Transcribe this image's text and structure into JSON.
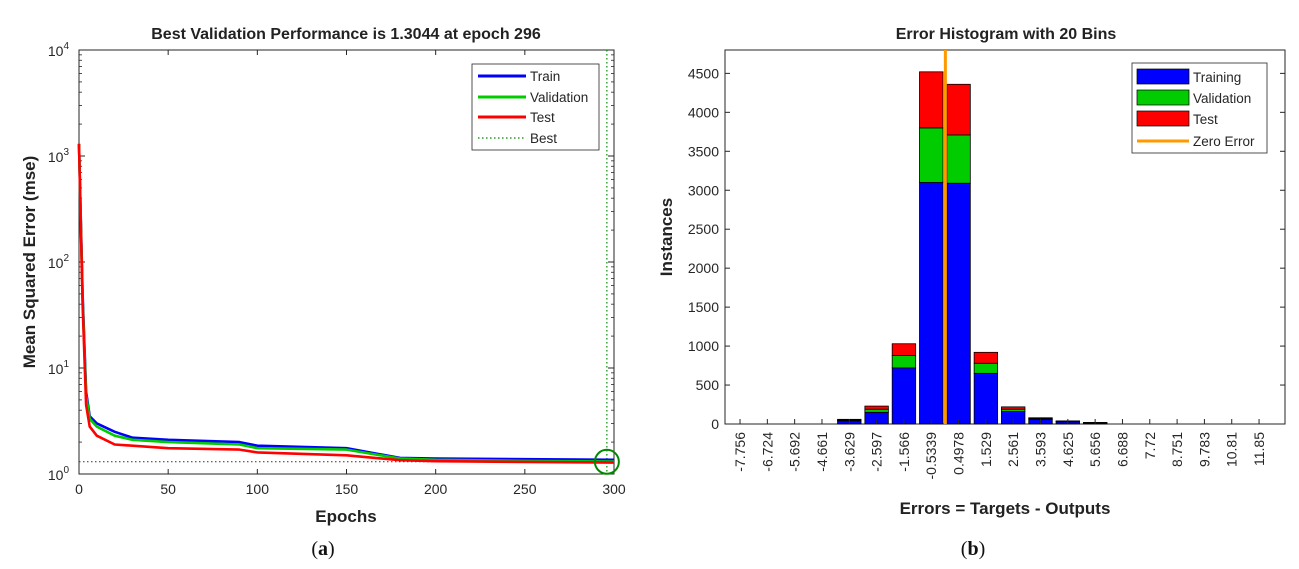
{
  "chart_data": [
    {
      "type": "line",
      "title": "Best Validation Performance is 1.3044 at epoch 296",
      "xlabel": "Epochs",
      "ylabel": "Mean Squared Error  (mse)",
      "xlim": [
        0,
        300
      ],
      "ylim": [
        1,
        10000
      ],
      "yscale": "log",
      "x_ticks": [
        "0",
        "50",
        "100",
        "150",
        "200",
        "250",
        "300"
      ],
      "y_ticks": [
        {
          "base": "10",
          "exp": "0"
        },
        {
          "base": "10",
          "exp": "1"
        },
        {
          "base": "10",
          "exp": "2"
        },
        {
          "base": "10",
          "exp": "3"
        },
        {
          "base": "10",
          "exp": "4"
        }
      ],
      "series": [
        {
          "name": "Train",
          "color": "#0000ff",
          "x": [
            0,
            2,
            4,
            6,
            10,
            20,
            30,
            50,
            90,
            100,
            150,
            180,
            200,
            250,
            300
          ],
          "y": [
            1300,
            50,
            6,
            3.5,
            3.0,
            2.5,
            2.2,
            2.1,
            2.0,
            1.85,
            1.75,
            1.42,
            1.4,
            1.38,
            1.36
          ]
        },
        {
          "name": "Validation",
          "color": "#00cc00",
          "x": [
            0,
            2,
            4,
            6,
            10,
            20,
            30,
            50,
            90,
            100,
            150,
            180,
            200,
            250,
            300
          ],
          "y": [
            1300,
            45,
            5.5,
            3.3,
            2.8,
            2.3,
            2.1,
            2.0,
            1.9,
            1.75,
            1.7,
            1.4,
            1.36,
            1.33,
            1.31
          ]
        },
        {
          "name": "Test",
          "color": "#ff0000",
          "x": [
            0,
            2,
            4,
            6,
            10,
            20,
            30,
            50,
            90,
            100,
            150,
            180,
            200,
            250,
            300
          ],
          "y": [
            1300,
            40,
            4.5,
            2.8,
            2.3,
            1.9,
            1.85,
            1.75,
            1.7,
            1.6,
            1.5,
            1.35,
            1.32,
            1.3,
            1.28
          ]
        }
      ],
      "best": {
        "name": "Best",
        "epoch": 296,
        "value": 1.3044,
        "color": "#008800"
      },
      "legend": [
        "Train",
        "Validation",
        "Test",
        "Best"
      ],
      "legend_position": "top-right",
      "grid": false
    },
    {
      "type": "bar",
      "stacked": true,
      "title": "Error Histogram with 20 Bins",
      "xlabel": "Errors = Targets - Outputs",
      "ylabel": "Instances",
      "ylim": [
        0,
        4800
      ],
      "y_ticks": [
        0,
        500,
        1000,
        1500,
        2000,
        2500,
        3000,
        3500,
        4000,
        4500
      ],
      "categories": [
        "-7.756",
        "-6.724",
        "-5.692",
        "-4.661",
        "-3.629",
        "-2.597",
        "-1.566",
        "-0.5339",
        "0.4978",
        "1.529",
        "2.561",
        "3.593",
        "4.625",
        "5.656",
        "6.688",
        "7.72",
        "8.751",
        "9.783",
        "10.81",
        "11.85"
      ],
      "series": [
        {
          "name": "Training",
          "color": "#0000ff",
          "values": [
            0,
            0,
            0,
            0,
            40,
            150,
            720,
            3100,
            3090,
            650,
            160,
            60,
            30,
            15,
            0,
            0,
            0,
            0,
            0,
            0
          ]
        },
        {
          "name": "Validation",
          "color": "#00cc00",
          "values": [
            0,
            0,
            0,
            0,
            10,
            40,
            160,
            700,
            620,
            130,
            30,
            10,
            5,
            3,
            0,
            0,
            0,
            0,
            0,
            0
          ]
        },
        {
          "name": "Test",
          "color": "#ff0000",
          "values": [
            0,
            0,
            0,
            0,
            10,
            40,
            150,
            720,
            650,
            140,
            30,
            10,
            5,
            2,
            0,
            0,
            0,
            0,
            0,
            0
          ]
        }
      ],
      "zero_error": {
        "name": "Zero Error",
        "color": "#ff9900"
      },
      "legend": [
        "Training",
        "Validation",
        "Test",
        "Zero Error"
      ],
      "legend_position": "top-right",
      "grid": false
    }
  ],
  "captions": {
    "a_open": "(",
    "a_letter": "a",
    "a_close": ")",
    "b_open": "(",
    "b_letter": "b",
    "b_close": ")"
  }
}
